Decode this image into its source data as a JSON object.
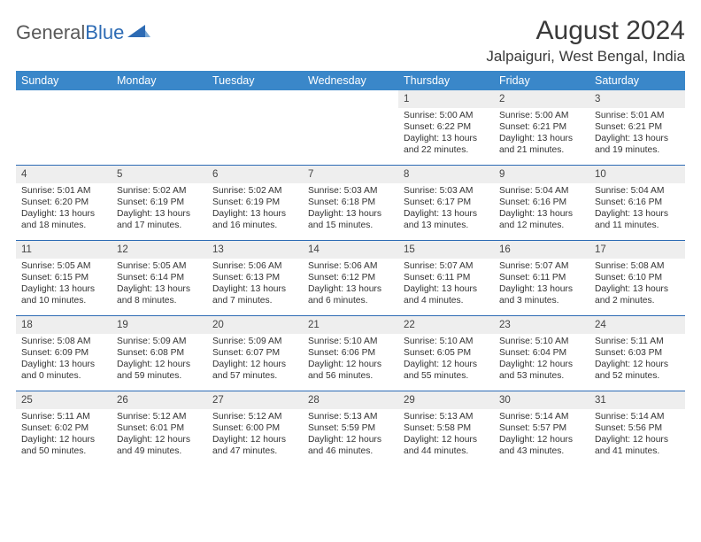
{
  "logo": {
    "text1": "General",
    "text2": "Blue"
  },
  "title": "August 2024",
  "location": "Jalpaiguri, West Bengal, India",
  "colors": {
    "header_bg": "#3a87c9",
    "header_text": "#ffffff",
    "row_sep": "#2d6bb4",
    "num_bg": "#eeeeee",
    "body_text": "#333333",
    "logo_gray": "#595959",
    "logo_blue": "#2d6bb4",
    "background": "#ffffff"
  },
  "dayNames": [
    "Sunday",
    "Monday",
    "Tuesday",
    "Wednesday",
    "Thursday",
    "Friday",
    "Saturday"
  ],
  "weeks": [
    [
      {
        "empty": true
      },
      {
        "empty": true
      },
      {
        "empty": true
      },
      {
        "empty": true
      },
      {
        "num": "1",
        "sunrise": "Sunrise: 5:00 AM",
        "sunset": "Sunset: 6:22 PM",
        "daylight": "Daylight: 13 hours and 22 minutes."
      },
      {
        "num": "2",
        "sunrise": "Sunrise: 5:00 AM",
        "sunset": "Sunset: 6:21 PM",
        "daylight": "Daylight: 13 hours and 21 minutes."
      },
      {
        "num": "3",
        "sunrise": "Sunrise: 5:01 AM",
        "sunset": "Sunset: 6:21 PM",
        "daylight": "Daylight: 13 hours and 19 minutes."
      }
    ],
    [
      {
        "num": "4",
        "sunrise": "Sunrise: 5:01 AM",
        "sunset": "Sunset: 6:20 PM",
        "daylight": "Daylight: 13 hours and 18 minutes."
      },
      {
        "num": "5",
        "sunrise": "Sunrise: 5:02 AM",
        "sunset": "Sunset: 6:19 PM",
        "daylight": "Daylight: 13 hours and 17 minutes."
      },
      {
        "num": "6",
        "sunrise": "Sunrise: 5:02 AM",
        "sunset": "Sunset: 6:19 PM",
        "daylight": "Daylight: 13 hours and 16 minutes."
      },
      {
        "num": "7",
        "sunrise": "Sunrise: 5:03 AM",
        "sunset": "Sunset: 6:18 PM",
        "daylight": "Daylight: 13 hours and 15 minutes."
      },
      {
        "num": "8",
        "sunrise": "Sunrise: 5:03 AM",
        "sunset": "Sunset: 6:17 PM",
        "daylight": "Daylight: 13 hours and 13 minutes."
      },
      {
        "num": "9",
        "sunrise": "Sunrise: 5:04 AM",
        "sunset": "Sunset: 6:16 PM",
        "daylight": "Daylight: 13 hours and 12 minutes."
      },
      {
        "num": "10",
        "sunrise": "Sunrise: 5:04 AM",
        "sunset": "Sunset: 6:16 PM",
        "daylight": "Daylight: 13 hours and 11 minutes."
      }
    ],
    [
      {
        "num": "11",
        "sunrise": "Sunrise: 5:05 AM",
        "sunset": "Sunset: 6:15 PM",
        "daylight": "Daylight: 13 hours and 10 minutes."
      },
      {
        "num": "12",
        "sunrise": "Sunrise: 5:05 AM",
        "sunset": "Sunset: 6:14 PM",
        "daylight": "Daylight: 13 hours and 8 minutes."
      },
      {
        "num": "13",
        "sunrise": "Sunrise: 5:06 AM",
        "sunset": "Sunset: 6:13 PM",
        "daylight": "Daylight: 13 hours and 7 minutes."
      },
      {
        "num": "14",
        "sunrise": "Sunrise: 5:06 AM",
        "sunset": "Sunset: 6:12 PM",
        "daylight": "Daylight: 13 hours and 6 minutes."
      },
      {
        "num": "15",
        "sunrise": "Sunrise: 5:07 AM",
        "sunset": "Sunset: 6:11 PM",
        "daylight": "Daylight: 13 hours and 4 minutes."
      },
      {
        "num": "16",
        "sunrise": "Sunrise: 5:07 AM",
        "sunset": "Sunset: 6:11 PM",
        "daylight": "Daylight: 13 hours and 3 minutes."
      },
      {
        "num": "17",
        "sunrise": "Sunrise: 5:08 AM",
        "sunset": "Sunset: 6:10 PM",
        "daylight": "Daylight: 13 hours and 2 minutes."
      }
    ],
    [
      {
        "num": "18",
        "sunrise": "Sunrise: 5:08 AM",
        "sunset": "Sunset: 6:09 PM",
        "daylight": "Daylight: 13 hours and 0 minutes."
      },
      {
        "num": "19",
        "sunrise": "Sunrise: 5:09 AM",
        "sunset": "Sunset: 6:08 PM",
        "daylight": "Daylight: 12 hours and 59 minutes."
      },
      {
        "num": "20",
        "sunrise": "Sunrise: 5:09 AM",
        "sunset": "Sunset: 6:07 PM",
        "daylight": "Daylight: 12 hours and 57 minutes."
      },
      {
        "num": "21",
        "sunrise": "Sunrise: 5:10 AM",
        "sunset": "Sunset: 6:06 PM",
        "daylight": "Daylight: 12 hours and 56 minutes."
      },
      {
        "num": "22",
        "sunrise": "Sunrise: 5:10 AM",
        "sunset": "Sunset: 6:05 PM",
        "daylight": "Daylight: 12 hours and 55 minutes."
      },
      {
        "num": "23",
        "sunrise": "Sunrise: 5:10 AM",
        "sunset": "Sunset: 6:04 PM",
        "daylight": "Daylight: 12 hours and 53 minutes."
      },
      {
        "num": "24",
        "sunrise": "Sunrise: 5:11 AM",
        "sunset": "Sunset: 6:03 PM",
        "daylight": "Daylight: 12 hours and 52 minutes."
      }
    ],
    [
      {
        "num": "25",
        "sunrise": "Sunrise: 5:11 AM",
        "sunset": "Sunset: 6:02 PM",
        "daylight": "Daylight: 12 hours and 50 minutes."
      },
      {
        "num": "26",
        "sunrise": "Sunrise: 5:12 AM",
        "sunset": "Sunset: 6:01 PM",
        "daylight": "Daylight: 12 hours and 49 minutes."
      },
      {
        "num": "27",
        "sunrise": "Sunrise: 5:12 AM",
        "sunset": "Sunset: 6:00 PM",
        "daylight": "Daylight: 12 hours and 47 minutes."
      },
      {
        "num": "28",
        "sunrise": "Sunrise: 5:13 AM",
        "sunset": "Sunset: 5:59 PM",
        "daylight": "Daylight: 12 hours and 46 minutes."
      },
      {
        "num": "29",
        "sunrise": "Sunrise: 5:13 AM",
        "sunset": "Sunset: 5:58 PM",
        "daylight": "Daylight: 12 hours and 44 minutes."
      },
      {
        "num": "30",
        "sunrise": "Sunrise: 5:14 AM",
        "sunset": "Sunset: 5:57 PM",
        "daylight": "Daylight: 12 hours and 43 minutes."
      },
      {
        "num": "31",
        "sunrise": "Sunrise: 5:14 AM",
        "sunset": "Sunset: 5:56 PM",
        "daylight": "Daylight: 12 hours and 41 minutes."
      }
    ]
  ]
}
